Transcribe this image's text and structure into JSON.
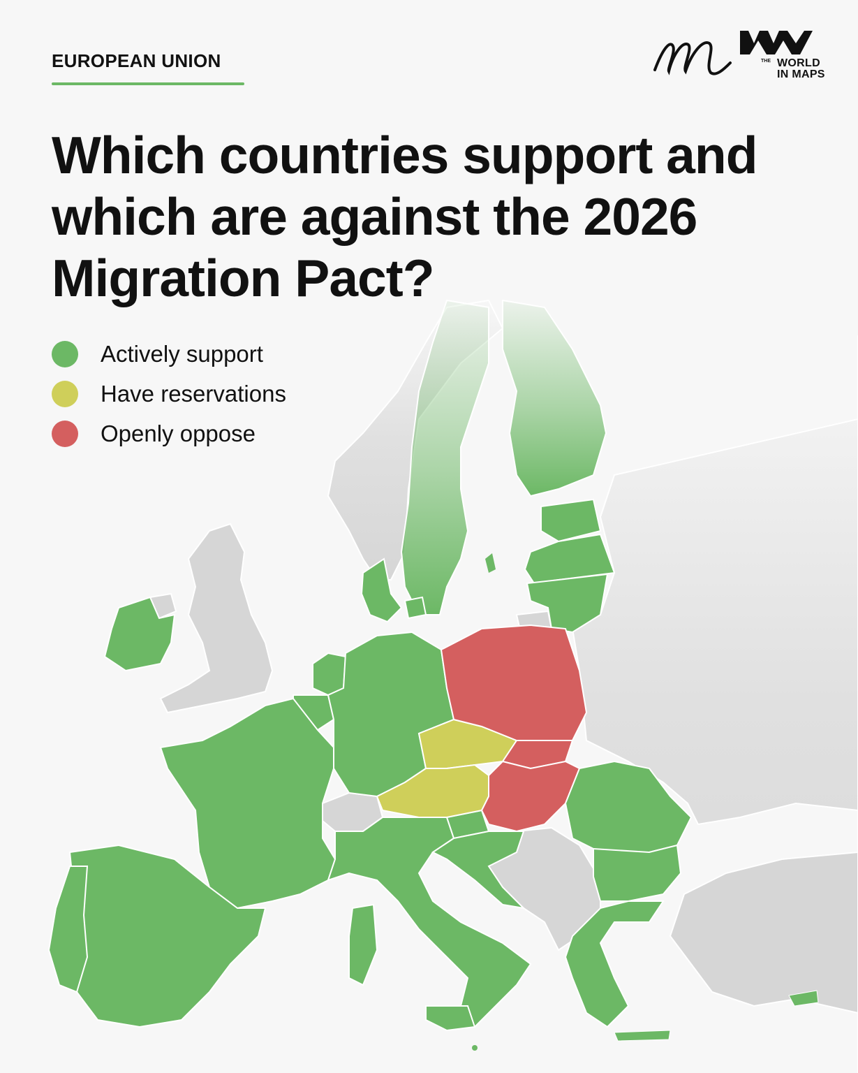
{
  "header": {
    "kicker": "EUROPEAN UNION",
    "title": "Which countries support and which are against the 2026 Migration Pact?"
  },
  "legend": {
    "items": [
      {
        "label": "Actively support",
        "color": "#6cb865"
      },
      {
        "label": "Have reservations",
        "color": "#cfcf5a"
      },
      {
        "label": "Openly oppose",
        "color": "#d45f5f"
      }
    ]
  },
  "logos": {
    "signature_mark": "m",
    "brand_line1": "THE",
    "brand_line2": "WORLD",
    "brand_line3": "IN MAPS"
  },
  "map": {
    "colors": {
      "support": "#6cb865",
      "reservations": "#cfcf5a",
      "oppose": "#d45f5f",
      "non_eu": "#d6d6d6",
      "border": "#ffffff"
    }
  }
}
